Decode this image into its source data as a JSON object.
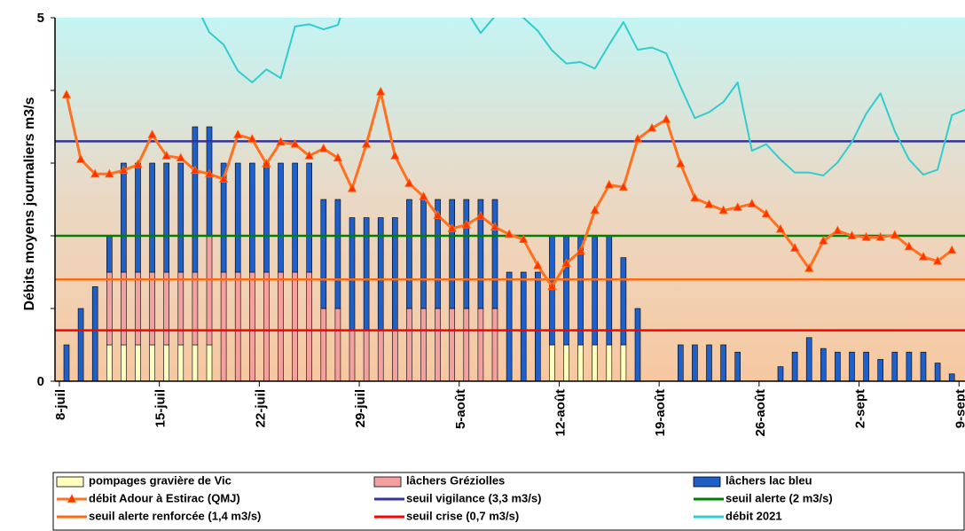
{
  "chart_data": {
    "type": "combo",
    "y_label": "Débits moyens journaliers m3/s",
    "ylim": [
      0,
      5
    ],
    "yticks": [
      0,
      5
    ],
    "minor_yticks": [
      1,
      2,
      3,
      4
    ],
    "categories": [
      "8-juil",
      null,
      null,
      null,
      null,
      null,
      null,
      "15-juil",
      null,
      null,
      null,
      null,
      null,
      null,
      "22-juil",
      null,
      null,
      null,
      null,
      null,
      null,
      "29-juil",
      null,
      null,
      null,
      null,
      null,
      null,
      "5-août",
      null,
      null,
      null,
      null,
      null,
      null,
      "12-août",
      null,
      null,
      null,
      null,
      null,
      null,
      "19-août",
      null,
      null,
      null,
      null,
      null,
      null,
      "26-août",
      null,
      null,
      null,
      null,
      null,
      null,
      "2-sept",
      null,
      null,
      null,
      null,
      null,
      null,
      "9-sept"
    ],
    "bar_series": [
      {
        "name": "pompages gravière de Vic",
        "color": "#ffffc0",
        "values": [
          0,
          0,
          0,
          0.5,
          0.5,
          0.5,
          0.5,
          0.5,
          0.5,
          0.5,
          0.5,
          0,
          0,
          0,
          0,
          0,
          0,
          0,
          0,
          0,
          0,
          0,
          0,
          0,
          0,
          0,
          0,
          0,
          0,
          0,
          0,
          0,
          0,
          0,
          0.5,
          0.5,
          0.5,
          0.5,
          0.5,
          0.5,
          0,
          0,
          0,
          0,
          0,
          0,
          0,
          0,
          0,
          0,
          0,
          0,
          0,
          0,
          0,
          0,
          0,
          0,
          0,
          0,
          0,
          0,
          0,
          null
        ]
      },
      {
        "name": "lâchers Gréziolles",
        "color": "#f4a0a0",
        "values": [
          0,
          0,
          0,
          1.0,
          1.0,
          1.0,
          1.0,
          1.0,
          1.0,
          1.0,
          1.5,
          1.5,
          1.5,
          1.5,
          1.5,
          1.5,
          1.5,
          1.5,
          1.0,
          1.0,
          0.7,
          0.7,
          0.7,
          0.7,
          1.0,
          1.0,
          1.0,
          1.0,
          1.0,
          1.0,
          1.0,
          0,
          0,
          0,
          0,
          0,
          0,
          0,
          0,
          0,
          0,
          0,
          0,
          0,
          0,
          0,
          0,
          0,
          0,
          0,
          0,
          0,
          0,
          0,
          0,
          0,
          0,
          0,
          0,
          0,
          0,
          0,
          0,
          null
        ]
      },
      {
        "name": "lâchers lac bleu",
        "color": "#1f5fc8",
        "values": [
          0.5,
          1.0,
          1.3,
          0.5,
          1.5,
          1.5,
          1.5,
          1.5,
          1.5,
          2.0,
          1.5,
          1.5,
          1.5,
          1.5,
          1.5,
          1.5,
          1.5,
          1.5,
          1.5,
          1.5,
          1.55,
          1.55,
          1.55,
          1.55,
          1.5,
          1.5,
          1.5,
          1.5,
          1.5,
          1.5,
          1.5,
          1.5,
          1.5,
          1.5,
          1.5,
          1.5,
          1.5,
          1.5,
          1.5,
          1.2,
          1.0,
          0,
          0,
          0.5,
          0.5,
          0.5,
          0.5,
          0.4,
          0,
          0,
          0.2,
          0.4,
          0.6,
          0.45,
          0.4,
          0.4,
          0.4,
          0.3,
          0.4,
          0.4,
          0.4,
          0.25,
          0.1,
          null
        ]
      }
    ],
    "line_series": [
      {
        "name": "débit Adour à Estirac (QMJ)",
        "color": "#ff7020",
        "marker_color": "#ff3300",
        "values": [
          3.94,
          3.05,
          2.85,
          2.85,
          2.9,
          2.98,
          3.39,
          3.1,
          3.07,
          2.9,
          2.85,
          2.78,
          3.39,
          3.33,
          2.99,
          3.29,
          3.26,
          3.1,
          3.2,
          3.07,
          2.65,
          3.26,
          3.98,
          3.1,
          2.72,
          2.54,
          2.28,
          2.1,
          2.15,
          2.27,
          2.12,
          2.02,
          1.95,
          1.59,
          1.3,
          1.62,
          1.79,
          2.35,
          2.7,
          2.67,
          3.33,
          3.48,
          3.6,
          2.99,
          2.52,
          2.43,
          2.35,
          2.39,
          2.44,
          2.3,
          2.09,
          1.83,
          1.55,
          1.93,
          2.07,
          2.0,
          1.98,
          1.98,
          2.01,
          1.85,
          1.71,
          1.65,
          1.8,
          null
        ]
      },
      {
        "name": "débit 2021",
        "color": "#33cccc",
        "values": [
          null,
          null,
          null,
          null,
          null,
          null,
          null,
          null,
          null,
          5.2,
          4.8,
          4.63,
          4.27,
          4.11,
          4.29,
          4.17,
          4.88,
          4.91,
          4.84,
          4.9,
          5.5,
          5.5,
          5.5,
          5.5,
          5.5,
          5.5,
          5.5,
          5.5,
          5.1,
          4.79,
          5.02,
          5.1,
          5.0,
          4.82,
          4.55,
          4.37,
          4.39,
          4.3,
          4.63,
          4.94,
          4.56,
          4.59,
          4.51,
          4.05,
          3.62,
          3.7,
          3.84,
          4.11,
          3.17,
          3.26,
          3.05,
          2.87,
          2.87,
          2.83,
          3.01,
          3.29,
          3.68,
          3.96,
          3.44,
          3.05,
          2.84,
          2.91,
          3.66,
          3.74
        ]
      }
    ],
    "hlines": [
      {
        "name": "seuil vigilance (3,3 m3/s)",
        "color": "#333399",
        "value": 3.3
      },
      {
        "name": "seuil alerte (2 m3/s)",
        "color": "#008000",
        "value": 2
      },
      {
        "name": "seuil alerte renforcée (1,4 m3/s)",
        "color": "#ff6a10",
        "value": 1.4
      },
      {
        "name": "seuil crise (0,7 m3/s)",
        "color": "#ff0000",
        "value": 0.7
      }
    ]
  }
}
